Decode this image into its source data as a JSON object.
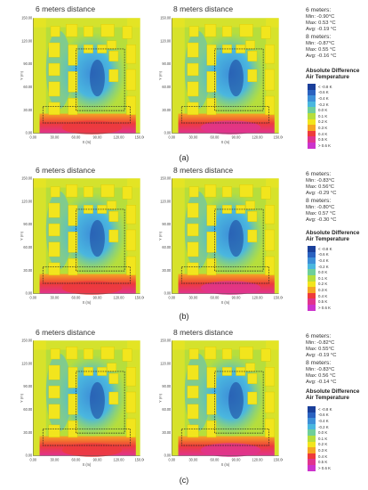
{
  "panels": [
    {
      "caption": "(a)",
      "maps": [
        {
          "title": "6 meters distance"
        },
        {
          "title": "8 meters distance"
        }
      ],
      "stats": [
        {
          "header": "6 meters:",
          "min": "Min: -0.90°C",
          "max": "Max: 0.53 °C",
          "avg": "Avg: -0.19 °C"
        },
        {
          "header": "8 meters:",
          "min": "Min: -0.87°C",
          "max": "Max: 0.55 °C",
          "avg": "Avg: -0.16 °C"
        }
      ],
      "legend_title": "Absolute Difference Air Temperature"
    },
    {
      "caption": "(b)",
      "maps": [
        {
          "title": "6 meters distance"
        },
        {
          "title": "8 meters distance"
        }
      ],
      "stats": [
        {
          "header": "6 meters:",
          "min": "Min: -0.83°C",
          "max": "Max: 0.56°C",
          "avg": "Avg: -0.29 °C"
        },
        {
          "header": "8 meters:",
          "min": "Min: -0.80°C",
          "max": "Max: 0.57 °C",
          "avg": "Avg: -0.30 °C"
        }
      ],
      "legend_title": "Absolute Difference Air Temperature"
    },
    {
      "caption": "(c)",
      "maps": [
        {
          "title": "6 meters distance"
        },
        {
          "title": "8 meters distance"
        }
      ],
      "stats": [
        {
          "header": "6 meters:",
          "min": "Min: -0.82°C",
          "max": "Max: 0.55°C",
          "avg": "Avg: -0.19 °C"
        },
        {
          "header": "8 meters:",
          "min": "Min: -0.83°C",
          "max": "Max: 0.56 °C",
          "avg": "Avg: -0.14 °C"
        }
      ],
      "legend_title": "Absolute Difference Air Temperature"
    }
  ],
  "legend_colors": [
    "#1a3f9a",
    "#2a62c0",
    "#3d8fd8",
    "#4ab7df",
    "#6fcf9a",
    "#b6de3c",
    "#f2e51d",
    "#f5a623",
    "#ee3b3b",
    "#e0348f",
    "#cc33cc"
  ],
  "legend_labels": [
    "< -0.8 K",
    "-0.6 K",
    "-0.4 K",
    "-0.2 K",
    "0.0 K",
    "0.1 K",
    "0.2 K",
    "0.3 K",
    "0.4 K",
    "0.5 K",
    "> 0.6 K"
  ],
  "axis": {
    "y_ticks": [
      "150.00",
      "120.00",
      "90.00",
      "60.00",
      "30.00",
      "0.00"
    ],
    "x_ticks": [
      "0.00",
      "30.00",
      "60.00",
      "90.00",
      "120.00",
      "150.00"
    ],
    "y_label": "Y (m)",
    "x_label": "X (m)"
  }
}
